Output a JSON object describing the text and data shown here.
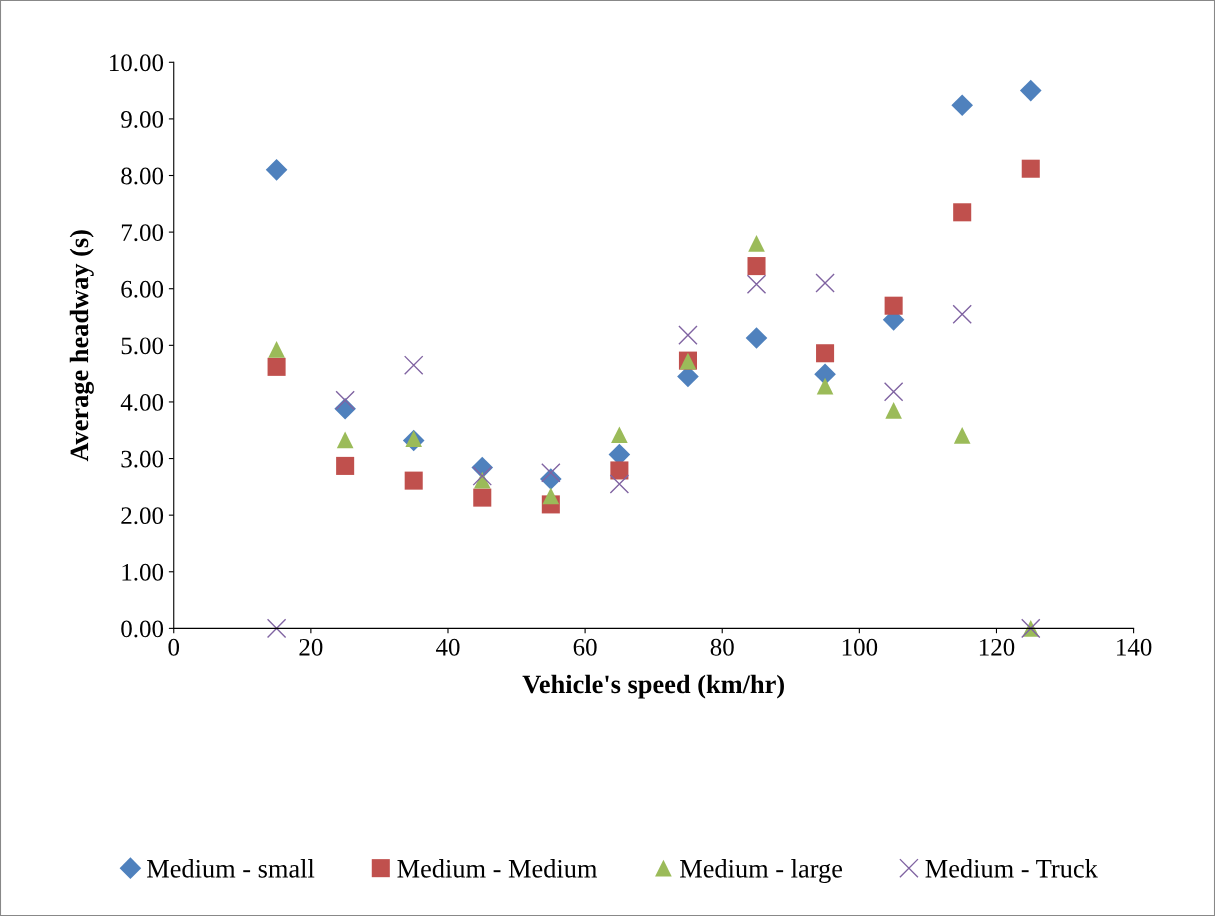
{
  "chart_data": {
    "type": "scatter",
    "xlabel": "Vehicle's speed (km/hr)",
    "ylabel": "Average headway (s)",
    "xlim": [
      0,
      140
    ],
    "xticks": [
      0,
      20,
      40,
      60,
      80,
      100,
      120,
      140
    ],
    "ylim": [
      0,
      10
    ],
    "yticks": [
      {
        "value": 0,
        "label": "0.00"
      },
      {
        "value": 1,
        "label": "1.00"
      },
      {
        "value": 2,
        "label": "2.00"
      },
      {
        "value": 3,
        "label": "3.00"
      },
      {
        "value": 4,
        "label": "4.00"
      },
      {
        "value": 5,
        "label": "5.00"
      },
      {
        "value": 6,
        "label": "6.00"
      },
      {
        "value": 7,
        "label": "7.00"
      },
      {
        "value": 8,
        "label": "8.00"
      },
      {
        "value": 9,
        "label": "9.00"
      },
      {
        "value": 10,
        "label": "10.00"
      }
    ],
    "x": [
      15,
      25,
      35,
      45,
      55,
      65,
      75,
      85,
      95,
      105,
      115,
      125
    ],
    "grid": false,
    "legend": "bottom",
    "series": [
      {
        "name": "Medium - small",
        "color": "#4f81bd",
        "marker": "diamond",
        "values": [
          8.1,
          3.88,
          3.32,
          2.84,
          2.64,
          3.07,
          4.45,
          5.13,
          4.49,
          5.45,
          9.24,
          9.5
        ]
      },
      {
        "name": "Medium - Medium",
        "color": "#c0504d",
        "marker": "square",
        "values": [
          4.62,
          2.87,
          2.61,
          2.31,
          2.19,
          2.79,
          4.73,
          6.4,
          4.86,
          5.7,
          7.35,
          8.12
        ]
      },
      {
        "name": "Medium - large",
        "color": "#9bbb59",
        "marker": "triangle",
        "values": [
          4.93,
          3.33,
          3.35,
          2.62,
          2.34,
          3.42,
          4.72,
          6.8,
          4.28,
          3.85,
          3.41,
          0.0
        ]
      },
      {
        "name": "Medium - Truck",
        "color": "#8064a2",
        "marker": "cross",
        "values": [
          0.0,
          4.03,
          4.65,
          2.69,
          2.75,
          2.55,
          5.18,
          6.08,
          6.1,
          4.18,
          5.55,
          0.0
        ]
      }
    ]
  }
}
